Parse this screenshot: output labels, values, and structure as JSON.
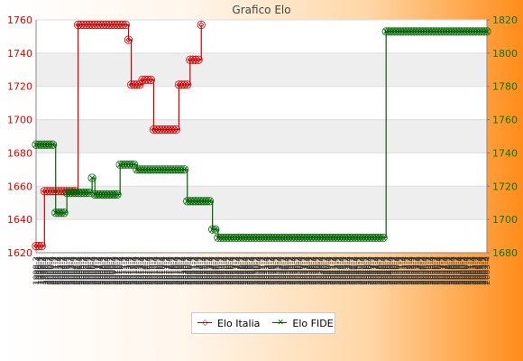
{
  "chart_data": {
    "type": "line",
    "title": "Grafico Elo",
    "xlabel": "",
    "ylabel": "",
    "x_tick_labels": [
      "1998-3",
      "1998-4",
      "1999-1",
      "1999-2",
      "1999-3",
      "1999-4",
      "2000-1",
      "2000-2",
      "2000-3",
      "2000-4",
      "2001-1",
      "2001-2",
      "2001-3",
      "2001-4",
      "2002-1",
      "2002-2",
      "2002-3",
      "2002-4",
      "2003-1",
      "2003-2",
      "2003-3",
      "2003-4",
      "2004-1",
      "2004-2",
      "2004-3",
      "2004-4",
      "2005-1",
      "2005-2",
      "2005-3",
      "2005-4",
      "2006-1",
      "2006-2",
      "2006-3",
      "2006-4",
      "2007-1",
      "2007-2",
      "2007-3",
      "2007-4",
      "2008-1",
      "2008-2",
      "2008-3",
      "2008-4",
      "2009-1",
      "2009-2",
      "2009-3",
      "2009-4",
      "2010-1",
      "2010-2",
      "2010-3",
      "2010-4",
      "2011-1",
      "2011-2",
      "2011-3",
      "2011-4",
      "2012-1",
      "2012-2",
      "2012-3",
      "2012-4",
      "2013-1",
      "2013-2",
      "2013-3",
      "2013-4",
      "2014-1",
      "2014-2",
      "2014-3",
      "2014-4",
      "2015-1",
      "2015-2",
      "2015-3",
      "2015-4",
      "2016-1",
      "2016-2",
      "2016-3",
      "2016-4",
      "2017-1",
      "2017-2",
      "2017-3",
      "2017-4",
      "2018-1",
      "2018-2",
      "2018-3",
      "2018-4",
      "2019-1",
      "2019-2",
      "2019-3",
      "2019-4",
      "2020-1",
      "2020-2",
      "2020-3",
      "2020-4",
      "2021-1",
      "2021-2",
      "2021-3",
      "2021-4",
      "2022-1",
      "2022-2",
      "2022-3",
      "2022-4",
      "2023-1",
      "2023-2",
      "2023-3",
      "2023-4",
      "2024-1",
      "2024-2",
      "2024-3",
      "2024-4",
      "2025-1",
      "2025-2",
      "2025-3",
      "2025-4",
      "2026-1",
      "2026-2",
      "2026-3",
      "2026-4",
      "2027-1",
      "2027-2",
      "2027-3",
      "2027-4",
      "2028-1",
      "2028-2",
      "2028-3",
      "2028-4",
      "2029-1",
      "2029-2",
      "2029-3",
      "2029-4",
      "2030-1",
      "2030-2",
      "2030-3",
      "2030-4",
      "2031-1",
      "2031-2",
      "2031-3",
      "2031-4",
      "2032-1",
      "2032-2",
      "2032-3",
      "2032-4",
      "2033-1",
      "2033-2",
      "2033-3",
      "2033-4",
      "2034-1",
      "2034-2",
      "2034-3",
      "2034-4",
      "2035-1",
      "2035-2",
      "2035-3",
      "2035-4",
      "2036-1",
      "2036-2",
      "2036-3",
      "2036-4",
      "2037-1",
      "2037-2",
      "2037-3",
      "2037-4",
      "2038-1",
      "2038-2",
      "2038-3",
      "2038-4",
      "2039-1",
      "2039-2",
      "2039-3",
      "2039-4",
      "2040-1",
      "2040-2",
      "2040-3",
      "2040-4",
      "2041-1",
      "2041-2",
      "2041-3",
      "2041-4",
      "2042-1",
      "2042-2",
      "2042-3",
      "2042-4",
      "2043-1",
      "2043-2",
      "2043-3",
      "2043-4",
      "2044-1",
      "2044-2",
      "2044-3",
      "2044-4",
      "2045-1",
      "2045-2",
      "2045-3",
      "2045-4",
      "2046-1",
      "2046-2",
      "2046-3",
      "2046-4",
      "2047-1",
      "2047-2",
      "2047-3",
      "2047-4",
      "2048-1",
      "2048-2",
      "2048-3",
      "2048-4",
      "2049-1",
      "2049-2",
      "2049-3",
      "2049-4",
      "2050-1",
      "2050-2",
      "2050-3",
      "2050-4",
      "2051-1",
      "2051-2",
      "2051-3",
      "2051-4",
      "2052-1",
      "2052-2",
      "2052-3",
      "2052-4",
      "2053-1",
      "2053-2",
      "2053-3",
      "2053-4",
      "2054-1",
      "2054-2",
      "2054-3",
      "2054-4",
      "2055-1",
      "2055-2",
      "2055-3",
      "2055-4",
      "2056-1",
      "2056-2",
      "2056-3",
      "2056-4",
      "2057-1",
      "2057-2",
      "2057-3",
      "2057-4",
      "2058-1",
      "2058-2",
      "2058-3",
      "2058-4",
      "2059-1",
      "2059-2",
      "2059-3",
      "2059-4",
      "2060-1",
      "2060-2",
      "2060-3",
      "2060-4",
      "2061-1",
      "2061-2",
      "2061-3",
      "2061-4",
      "2062-1",
      "2062-2",
      "2062-3",
      "2062-4",
      "2063-1",
      "2063-2",
      "2063-3",
      "2063-4"
    ],
    "y_left": {
      "label": "",
      "range": [
        1620,
        1760
      ],
      "ticks": [
        1620,
        1640,
        1660,
        1680,
        1700,
        1720,
        1740,
        1760
      ]
    },
    "y_right": {
      "label": "",
      "range": [
        1680,
        1820
      ],
      "ticks": [
        1680,
        1700,
        1720,
        1740,
        1760,
        1780,
        1800,
        1820
      ]
    },
    "grid": true,
    "legend_position": "bottom",
    "series": [
      {
        "name": "Elo Italia",
        "axis": "left",
        "color": "#d00000",
        "marker": "diamond",
        "values": [
          1624,
          1624,
          1624,
          1657,
          1657,
          1657,
          1657,
          1657,
          1657,
          1657,
          1657,
          1657,
          1657,
          1657,
          1657,
          1757,
          1757,
          1757,
          1757,
          1757,
          1757,
          1757,
          1757,
          1757,
          1757,
          1757,
          1757,
          1757,
          1757,
          1757,
          1757,
          1757,
          1757,
          1748,
          1721,
          1721,
          1721,
          1721,
          1724,
          1724,
          1724,
          1724,
          1694,
          1694,
          1694,
          1694,
          1694,
          1694,
          1694,
          1694,
          1694,
          1721,
          1721,
          1721,
          1721,
          1736,
          1736,
          1736,
          1736,
          1757
        ]
      },
      {
        "name": "Elo FIDE",
        "axis": "right",
        "color": "#006400",
        "marker": "x",
        "values": [
          1745,
          1745,
          1745,
          1745,
          1745,
          1745,
          1745,
          1704,
          1704,
          1704,
          1704,
          1716,
          1716,
          1716,
          1716,
          1716,
          1716,
          1716,
          1716,
          1716,
          1725,
          1715,
          1715,
          1715,
          1715,
          1715,
          1715,
          1715,
          1715,
          1715,
          1733,
          1733,
          1733,
          1733,
          1733,
          1733,
          1730,
          1730,
          1730,
          1730,
          1730,
          1730,
          1730,
          1730,
          1730,
          1730,
          1730,
          1730,
          1730,
          1730,
          1730,
          1730,
          1730,
          1730,
          1711,
          1711,
          1711,
          1711,
          1711,
          1711,
          1711,
          1711,
          1711,
          1694,
          1694,
          1689,
          1689,
          1689,
          1689,
          1689,
          1689,
          1689,
          1689,
          1689,
          1689,
          1689,
          1689,
          1689,
          1689,
          1689,
          1689,
          1689,
          1689,
          1689,
          1689,
          1689,
          1689,
          1689,
          1689,
          1689,
          1689,
          1689,
          1689,
          1689,
          1689,
          1689,
          1689,
          1689,
          1689,
          1689,
          1689,
          1689,
          1689,
          1689,
          1689,
          1689,
          1689,
          1689,
          1689,
          1689,
          1689,
          1689,
          1689,
          1689,
          1689,
          1689,
          1689,
          1689,
          1689,
          1689,
          1689,
          1689,
          1689,
          1689,
          1689,
          1813,
          1813,
          1813,
          1813,
          1813,
          1813,
          1813,
          1813,
          1813,
          1813,
          1813,
          1813,
          1813,
          1813,
          1813,
          1813,
          1813,
          1813,
          1813,
          1813,
          1813,
          1813,
          1813,
          1813,
          1813,
          1813,
          1813,
          1813,
          1813,
          1813,
          1813,
          1813,
          1813,
          1813,
          1813,
          1813,
          1813
        ]
      }
    ]
  }
}
